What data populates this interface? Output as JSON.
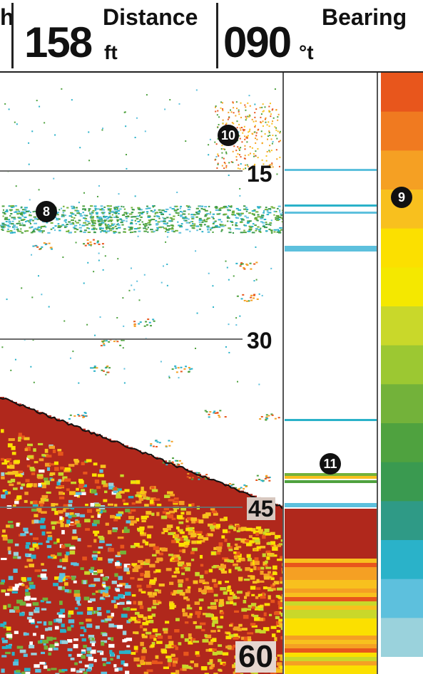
{
  "header": {
    "depth_label_fragment": "h",
    "distance": {
      "value": "158",
      "label": "Distance",
      "unit": "ft"
    },
    "bearing": {
      "value": "090",
      "label": "Bearing",
      "unit": "°t"
    }
  },
  "depth_scale": {
    "ticks": [
      "15",
      "30",
      "45",
      "60"
    ]
  },
  "callouts": {
    "thermocline": "8",
    "color_palette": "9",
    "surface_clutter": "10",
    "flasher": "11"
  },
  "colors": {
    "palette": [
      "#e8561c",
      "#f07a20",
      "#f5a023",
      "#f8c01e",
      "#fbe000",
      "#f4e800",
      "#c9d82a",
      "#9cc832",
      "#73b23a",
      "#4fa23f",
      "#3a9a50",
      "#2f9a86",
      "#2ab2c9",
      "#5dc0dd",
      "#9ad2dc"
    ],
    "bottom_red": "#b0281c",
    "grid_line": "#6b6b6b"
  }
}
